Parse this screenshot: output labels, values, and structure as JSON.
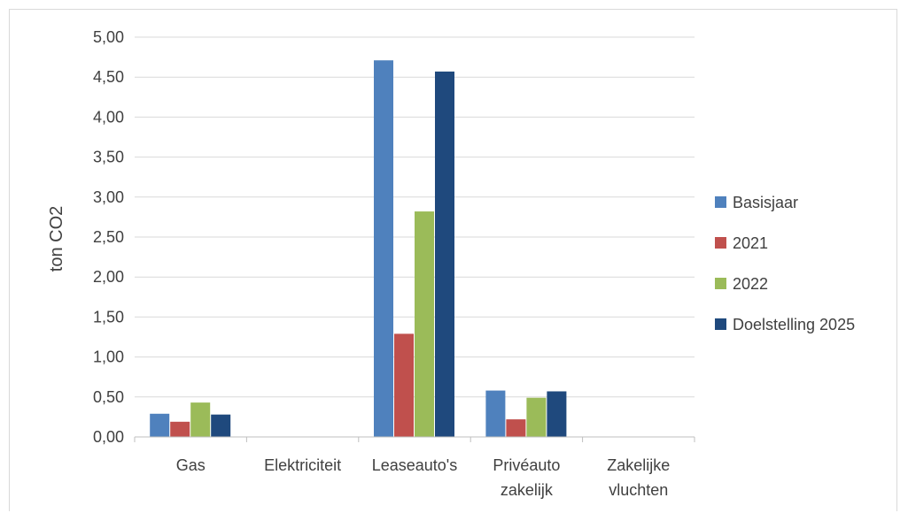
{
  "chart_data": {
    "type": "bar",
    "title": "",
    "xlabel": "",
    "ylabel": "ton CO2",
    "ylim": [
      0,
      5
    ],
    "yticks": [
      "0,00",
      "0,50",
      "1,00",
      "1,50",
      "2,00",
      "2,50",
      "3,00",
      "3,50",
      "4,00",
      "4,50",
      "5,00"
    ],
    "grid": true,
    "legend_position": "right",
    "categories": [
      [
        "Gas"
      ],
      [
        "Elektriciteit"
      ],
      [
        "Leaseauto's"
      ],
      [
        "Privéauto",
        "zakelijk"
      ],
      [
        "Zakelijke",
        "vluchten"
      ]
    ],
    "series": [
      {
        "name": "Basisjaar",
        "color": "#4F81BD",
        "values": [
          0.29,
          0,
          4.71,
          0.58,
          0
        ]
      },
      {
        "name": "2021",
        "color": "#C0504D",
        "values": [
          0.19,
          0,
          1.29,
          0.22,
          0
        ]
      },
      {
        "name": "2022",
        "color": "#9BBB59",
        "values": [
          0.43,
          0,
          2.82,
          0.49,
          0
        ]
      },
      {
        "name": "Doelstelling 2025",
        "color": "#1F497D",
        "values": [
          0.28,
          0,
          4.57,
          0.57,
          0
        ]
      }
    ]
  }
}
